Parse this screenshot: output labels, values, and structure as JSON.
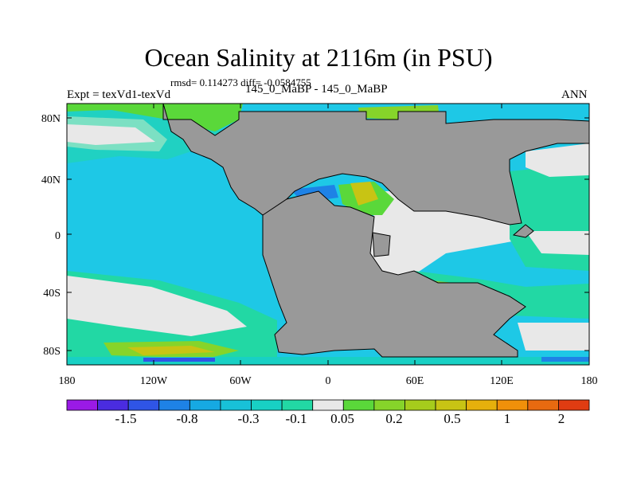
{
  "header": {
    "title": "Ocean Salinity at 2116m (in PSU)",
    "stats": "rmsd= 0.114273 diff= -0.0584755",
    "expt": "Expt = texVd1-texVd",
    "subtitle": "145_0_MaBP - 145_0_MaBP",
    "season": "ANN"
  },
  "axes": {
    "x_ticks": [
      "180",
      "120W",
      "60W",
      "0",
      "60E",
      "120E",
      "180"
    ],
    "y_ticks": [
      "80N",
      "40N",
      "0",
      "40S",
      "80S"
    ]
  },
  "colorbar": {
    "colors": [
      "#9a1ae6",
      "#4a2ce0",
      "#2f55e6",
      "#1e82e6",
      "#16a9e2",
      "#18c1d8",
      "#18d0c4",
      "#22d8a4",
      "#e8e8e8",
      "#5ad83a",
      "#86d42a",
      "#a6cc1c",
      "#c8c414",
      "#e6b00c",
      "#f0900a",
      "#e86a10",
      "#e03c12"
    ],
    "labels": [
      "-1.5",
      "-0.8",
      "-0.3",
      "-0.1",
      "0.05",
      "0.2",
      "0.5",
      "1",
      "2"
    ]
  },
  "map_colors": {
    "land": "#999999",
    "ocean_base": "#1ec8e6",
    "teal": "#22d8a4",
    "near_zero": "#e8e8e8",
    "green": "#5ad83a",
    "yellow_green": "#a6cc1c",
    "blue": "#1e82e6",
    "coast": "#000000"
  }
}
